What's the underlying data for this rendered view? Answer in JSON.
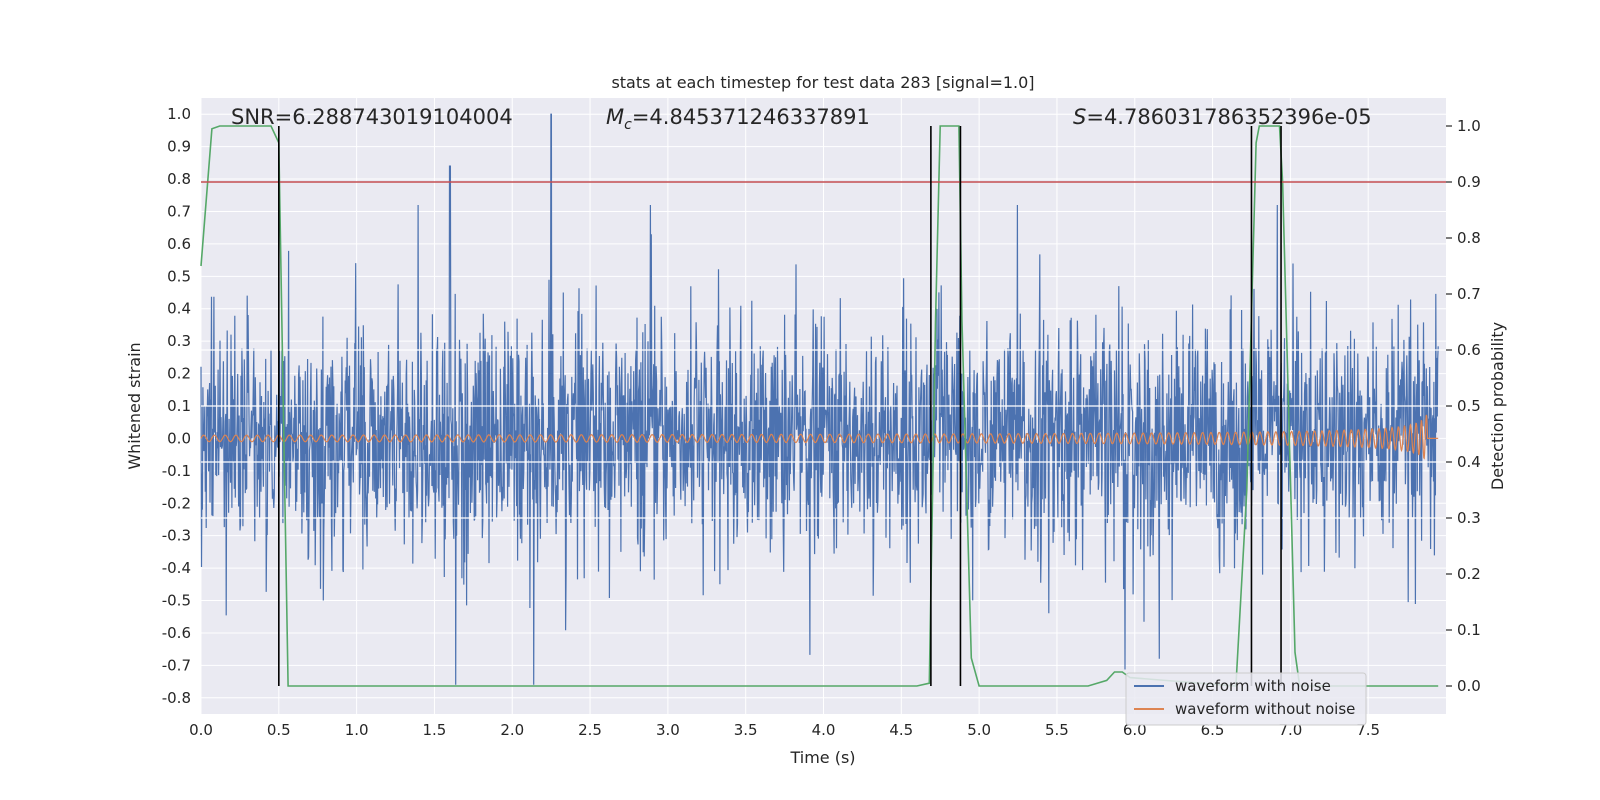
{
  "chart_data": {
    "type": "line",
    "title": "stats at each timestep for test data 283 [signal=1.0]",
    "xlabel": "Time (s)",
    "ylabel": "Whitened strain",
    "y2label": "Detection probability",
    "xlim": [
      0.0,
      8.0
    ],
    "ylim": [
      -0.85,
      1.05
    ],
    "y2lim": [
      -0.05,
      1.05
    ],
    "xticks": [
      "0.0",
      "0.5",
      "1.0",
      "1.5",
      "2.0",
      "2.5",
      "3.0",
      "3.5",
      "4.0",
      "4.5",
      "5.0",
      "5.5",
      "6.0",
      "6.5",
      "7.0",
      "7.5"
    ],
    "yticks": [
      "1.0",
      "0.9",
      "0.8",
      "0.7",
      "0.6",
      "0.5",
      "0.4",
      "0.3",
      "0.2",
      "0.1",
      "0.0",
      "-0.1",
      "-0.2",
      "-0.3",
      "-0.4",
      "-0.5",
      "-0.6",
      "-0.7",
      "-0.8"
    ],
    "y2ticks": [
      "1.0",
      "0.9",
      "0.8",
      "0.7",
      "0.6",
      "0.5",
      "0.4",
      "0.3",
      "0.2",
      "0.1",
      "0.0"
    ],
    "grid": true,
    "legend_position": "lower-right",
    "annotations": {
      "snr": "SNR=6.288743019104004",
      "mc_symbol": "M",
      "mc_sub": "c",
      "mc_value": "=4.845371246337891",
      "s_symbol": "S",
      "s_value": "=4.786031786352396e-05"
    },
    "series": [
      {
        "name": "waveform with noise",
        "color": "#4c72b0",
        "axis": "left",
        "envelope": "noise band roughly -0.75 to 1.0, peaks near 0.84 at t=1.6 and 1.0 at t=2.25"
      },
      {
        "name": "waveform without noise",
        "color": "#dd8452",
        "axis": "left",
        "chirp": {
          "start": 0.0,
          "merger": 7.88,
          "start_amp": 0.01,
          "peak_amp": 0.13,
          "end_time": 7.95
        }
      },
      {
        "color": "#55a868",
        "axis": "right",
        "x": [
          0.0,
          0.07,
          0.12,
          0.45,
          0.5,
          0.56,
          4.6,
          4.68,
          4.72,
          4.75,
          4.87,
          4.89,
          4.95,
          5.0,
          5.7,
          5.82,
          5.87,
          5.92,
          5.97,
          6.65,
          6.72,
          6.78,
          6.8,
          6.93,
          6.95,
          7.03,
          7.06,
          7.95
        ],
        "y": [
          0.75,
          0.995,
          1.0,
          1.0,
          0.97,
          0.0,
          0.0,
          0.005,
          0.65,
          1.0,
          1.0,
          0.65,
          0.05,
          0.0,
          0.0,
          0.01,
          0.025,
          0.025,
          0.015,
          0.0,
          0.35,
          0.97,
          1.0,
          1.0,
          0.9,
          0.06,
          0.0,
          0.0
        ]
      }
    ],
    "threshold": {
      "color": "#c44e52",
      "axis": "right",
      "value": 0.9
    },
    "markers": {
      "color": "#000000",
      "x": [
        0.5,
        4.69,
        4.88,
        6.75,
        6.94
      ],
      "y_range": [
        0.0,
        1.0
      ]
    },
    "white_lines_y2": [
      0.6,
      0.5,
      0.4,
      0.3
    ],
    "legend": [
      {
        "label": "waveform with noise",
        "color": "#4c72b0"
      },
      {
        "label": "waveform without noise",
        "color": "#dd8452"
      }
    ]
  }
}
